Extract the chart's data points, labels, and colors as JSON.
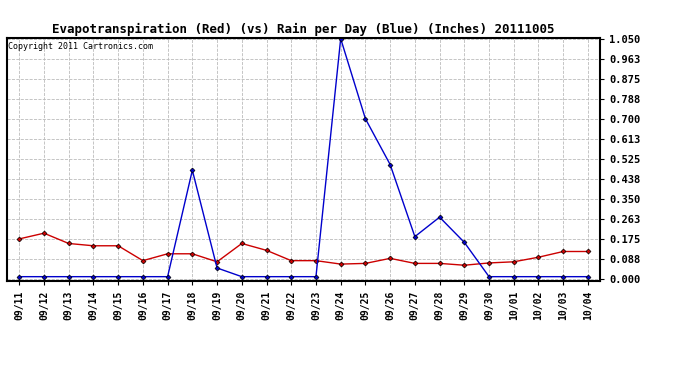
{
  "title": "Evapotranspiration (Red) (vs) Rain per Day (Blue) (Inches) 20111005",
  "copyright": "Copyright 2011 Cartronics.com",
  "x_labels": [
    "09/11",
    "09/12",
    "09/13",
    "09/14",
    "09/15",
    "09/16",
    "09/17",
    "09/18",
    "09/19",
    "09/20",
    "09/21",
    "09/22",
    "09/23",
    "09/24",
    "09/25",
    "09/26",
    "09/27",
    "09/28",
    "09/29",
    "09/30",
    "10/01",
    "10/02",
    "10/03",
    "10/04"
  ],
  "red_data": [
    0.175,
    0.2,
    0.155,
    0.145,
    0.145,
    0.08,
    0.11,
    0.11,
    0.075,
    0.155,
    0.125,
    0.08,
    0.08,
    0.065,
    0.068,
    0.09,
    0.068,
    0.068,
    0.06,
    0.07,
    0.075,
    0.095,
    0.12,
    0.12
  ],
  "blue_data": [
    0.01,
    0.01,
    0.01,
    0.01,
    0.01,
    0.01,
    0.01,
    0.475,
    0.048,
    0.01,
    0.01,
    0.01,
    0.01,
    1.05,
    0.7,
    0.5,
    0.185,
    0.27,
    0.16,
    0.01,
    0.01,
    0.01,
    0.01,
    0.01
  ],
  "y_ticks": [
    0.0,
    0.088,
    0.175,
    0.263,
    0.35,
    0.438,
    0.525,
    0.613,
    0.7,
    0.788,
    0.875,
    0.963,
    1.05
  ],
  "ylim": [
    -0.01,
    1.055
  ],
  "background_color": "#ffffff",
  "grid_color": "#bbbbbb",
  "red_color": "#cc0000",
  "blue_color": "#0000cc",
  "title_fontsize": 9,
  "copyright_fontsize": 6,
  "tick_fontsize": 7,
  "ytick_fontsize": 7.5
}
